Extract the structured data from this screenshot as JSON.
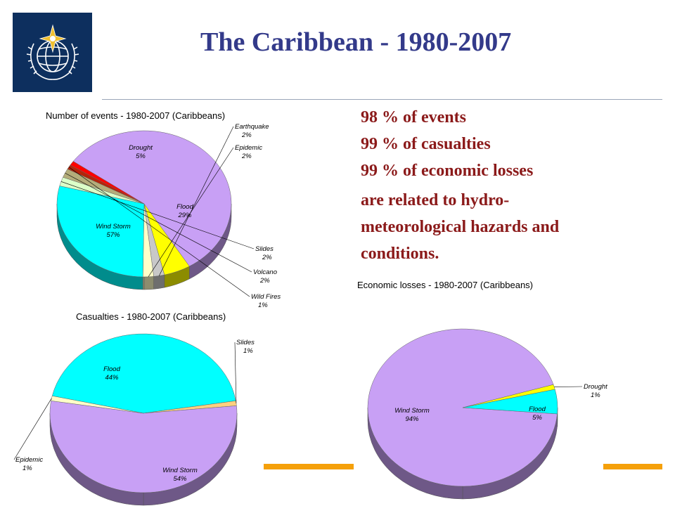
{
  "title": "The Caribbean - 1980-2007",
  "stats": {
    "line1": "98 % of events",
    "line2": "99 % of casualties",
    "line3": "99 % of economic losses",
    "line4": "are related to hydro-",
    "line5": "meteorological hazards and",
    "line6": "conditions."
  },
  "colors": {
    "title": "#333a8a",
    "stats_text": "#8b1a1a",
    "logo_bg": "#0d2f5e",
    "accent": "#f5a00a"
  },
  "icons": {
    "logo": "wmo-globe-emblem-icon"
  },
  "chart_data": [
    {
      "type": "pie",
      "style": "3d",
      "title": "Number of events - 1980-2007 (Caribbeans)",
      "slices": [
        {
          "name": "Wind Storm",
          "pct_label": "57%",
          "value": 57,
          "color": "#c8a0f5",
          "label_inside": true
        },
        {
          "name": "Drought",
          "pct_label": "5%",
          "value": 5,
          "color": "#ffff00",
          "label_inside": true
        },
        {
          "name": "Earthquake",
          "pct_label": "2%",
          "value": 2,
          "color": "#c8c8c8",
          "label_inside": false
        },
        {
          "name": "Epidemic",
          "pct_label": "2%",
          "value": 2,
          "color": "#ffffc8",
          "label_inside": false
        },
        {
          "name": "Flood",
          "pct_label": "29%",
          "value": 29,
          "color": "#00ffff",
          "label_inside": true
        },
        {
          "name": "Slides",
          "pct_label": "2%",
          "value": 2,
          "color": "#dcffc8",
          "label_inside": false
        },
        {
          "name": "Volcano",
          "pct_label": "2%",
          "value": 2,
          "color": "#b4ad7a",
          "label_inside": false
        },
        {
          "name": "Wild Fires",
          "pct_label": "1%",
          "value": 1,
          "color": "#b4240a",
          "label_inside": false
        },
        {
          "name": "",
          "pct_label": "",
          "value": 1,
          "color": "#ff0000",
          "label_inside": false
        }
      ]
    },
    {
      "type": "pie",
      "style": "3d",
      "title": "Casualties - 1980-2007 (Caribbeans)",
      "slices": [
        {
          "name": "Flood",
          "pct_label": "44%",
          "value": 44,
          "color": "#00ffff",
          "label_inside": true
        },
        {
          "name": "Slides",
          "pct_label": "1%",
          "value": 1,
          "color": "#ffd080",
          "label_inside": false
        },
        {
          "name": "Wind Storm",
          "pct_label": "54%",
          "value": 54,
          "color": "#c8a0f5",
          "label_inside": true
        },
        {
          "name": "Epidemic",
          "pct_label": "1%",
          "value": 1,
          "color": "#ffffc8",
          "label_inside": false
        }
      ]
    },
    {
      "type": "pie",
      "style": "3d",
      "title": "Economic losses - 1980-2007 (Caribbeans)",
      "slices": [
        {
          "name": "Wind Storm",
          "pct_label": "94%",
          "value": 94,
          "color": "#c8a0f5",
          "label_inside": true
        },
        {
          "name": "Drought",
          "pct_label": "1%",
          "value": 1,
          "color": "#ffff00",
          "label_inside": false
        },
        {
          "name": "Flood",
          "pct_label": "5%",
          "value": 5,
          "color": "#00ffff",
          "label_inside": true
        }
      ]
    }
  ]
}
